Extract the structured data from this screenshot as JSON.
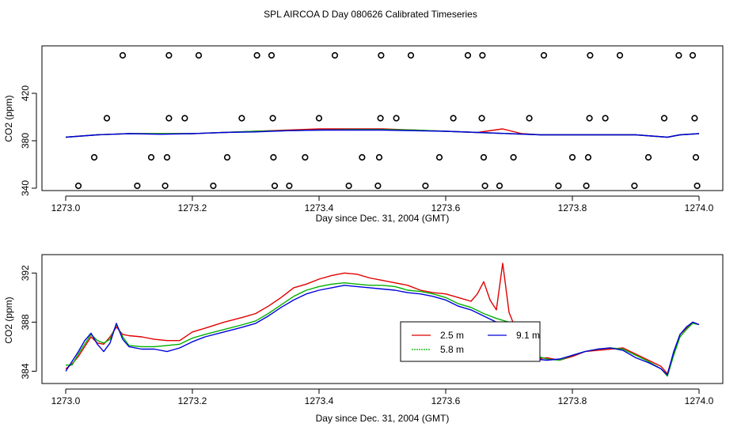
{
  "title": "SPL AIRCOA D  Day 080626  Calibrated Timeseries",
  "colors": {
    "series_2_5m": "#e00000",
    "series_5_8m": "#00b000",
    "series_9_1m": "#0000dd",
    "frame": "#000000"
  },
  "chart_data": [
    {
      "type": "line",
      "panel": "top",
      "xlabel": "Day since Dec. 31, 2004 (GMT)",
      "ylabel": "CO2 (ppm)",
      "xlim": [
        1273.0,
        1274.0
      ],
      "ylim": [
        338,
        460
      ],
      "xticks": [
        1273.0,
        1273.2,
        1273.4,
        1273.6,
        1273.8,
        1274.0
      ],
      "xtick_labels": [
        "1273.0",
        "1273.2",
        "1273.4",
        "1273.6",
        "1273.8",
        "1274.0"
      ],
      "yticks": [
        340,
        380,
        420
      ],
      "ytick_labels": [
        "340",
        "380",
        "420"
      ],
      "series": [
        {
          "name": "2.5 m",
          "color": "#e00000",
          "x": [
            1273.0,
            1273.05,
            1273.1,
            1273.15,
            1273.2,
            1273.25,
            1273.3,
            1273.35,
            1273.4,
            1273.45,
            1273.5,
            1273.55,
            1273.6,
            1273.65,
            1273.69,
            1273.72,
            1273.75,
            1273.8,
            1273.85,
            1273.9,
            1273.95,
            1273.97,
            1274.0
          ],
          "values": [
            383,
            385,
            386,
            386,
            386,
            387,
            388,
            389,
            390,
            390,
            390,
            389,
            388,
            387,
            390,
            386,
            385,
            385,
            385,
            385,
            383,
            385,
            386
          ]
        },
        {
          "name": "5.8 m",
          "color": "#00b000",
          "x": [
            1273.0,
            1273.05,
            1273.1,
            1273.15,
            1273.2,
            1273.25,
            1273.3,
            1273.35,
            1273.4,
            1273.45,
            1273.5,
            1273.55,
            1273.6,
            1273.65,
            1273.7,
            1273.75,
            1273.8,
            1273.85,
            1273.9,
            1273.95,
            1273.97,
            1274.0
          ],
          "values": [
            383,
            385,
            386,
            386,
            386,
            387,
            388,
            388.5,
            389,
            389.5,
            389.5,
            389,
            388,
            387,
            386,
            385,
            385,
            385,
            385,
            383,
            385,
            386
          ]
        },
        {
          "name": "9.1 m",
          "color": "#0000dd",
          "x": [
            1273.0,
            1273.05,
            1273.1,
            1273.15,
            1273.2,
            1273.25,
            1273.3,
            1273.35,
            1273.4,
            1273.45,
            1273.5,
            1273.55,
            1273.6,
            1273.65,
            1273.7,
            1273.75,
            1273.8,
            1273.85,
            1273.9,
            1273.95,
            1273.97,
            1274.0
          ],
          "values": [
            383,
            385,
            386,
            385.5,
            386,
            387,
            387.5,
            388.5,
            389,
            389,
            389,
            388.5,
            388,
            387,
            386,
            385,
            385,
            385,
            385,
            383,
            385,
            386
          ]
        }
      ],
      "marker_series": {
        "name": "flags",
        "marker": "open-circle",
        "points": [
          [
            1273.02,
            342
          ],
          [
            1273.045,
            366
          ],
          [
            1273.065,
            399
          ],
          [
            1273.09,
            452
          ],
          [
            1273.113,
            342
          ],
          [
            1273.135,
            366
          ],
          [
            1273.157,
            342
          ],
          [
            1273.16,
            366
          ],
          [
            1273.163,
            399
          ],
          [
            1273.163,
            452
          ],
          [
            1273.188,
            399
          ],
          [
            1273.21,
            452
          ],
          [
            1273.233,
            342
          ],
          [
            1273.255,
            366
          ],
          [
            1273.278,
            399
          ],
          [
            1273.302,
            452
          ],
          [
            1273.325,
            452
          ],
          [
            1273.327,
            399
          ],
          [
            1273.328,
            366
          ],
          [
            1273.33,
            342
          ],
          [
            1273.353,
            342
          ],
          [
            1273.378,
            366
          ],
          [
            1273.4,
            399
          ],
          [
            1273.425,
            452
          ],
          [
            1273.447,
            342
          ],
          [
            1273.468,
            366
          ],
          [
            1273.493,
            342
          ],
          [
            1273.495,
            366
          ],
          [
            1273.497,
            399
          ],
          [
            1273.498,
            452
          ],
          [
            1273.522,
            399
          ],
          [
            1273.545,
            452
          ],
          [
            1273.568,
            342
          ],
          [
            1273.59,
            366
          ],
          [
            1273.612,
            399
          ],
          [
            1273.635,
            452
          ],
          [
            1273.657,
            399
          ],
          [
            1273.658,
            452
          ],
          [
            1273.66,
            366
          ],
          [
            1273.662,
            342
          ],
          [
            1273.685,
            342
          ],
          [
            1273.707,
            366
          ],
          [
            1273.732,
            399
          ],
          [
            1273.755,
            452
          ],
          [
            1273.778,
            342
          ],
          [
            1273.8,
            366
          ],
          [
            1273.822,
            342
          ],
          [
            1273.825,
            366
          ],
          [
            1273.827,
            399
          ],
          [
            1273.828,
            452
          ],
          [
            1273.852,
            399
          ],
          [
            1273.875,
            452
          ],
          [
            1273.898,
            342
          ],
          [
            1273.92,
            366
          ],
          [
            1273.945,
            399
          ],
          [
            1273.968,
            452
          ],
          [
            1273.99,
            452
          ],
          [
            1273.993,
            399
          ],
          [
            1273.995,
            366
          ],
          [
            1273.997,
            342
          ]
        ]
      }
    },
    {
      "type": "line",
      "panel": "bottom",
      "xlabel": "Day since Dec. 31, 2004 (GMT)",
      "ylabel": "CO2 (ppm)",
      "xlim": [
        1273.0,
        1274.0
      ],
      "ylim": [
        383,
        393.5
      ],
      "xticks": [
        1273.0,
        1273.2,
        1273.4,
        1273.6,
        1273.8,
        1274.0
      ],
      "xtick_labels": [
        "1273.0",
        "1273.2",
        "1273.4",
        "1273.6",
        "1273.8",
        "1274.0"
      ],
      "yticks": [
        384,
        388,
        392
      ],
      "ytick_labels": [
        "384",
        "388",
        "392"
      ],
      "legend": {
        "placement": "bottom-center",
        "entries": [
          "2.5 m",
          "5.8 m",
          "9.1 m"
        ]
      },
      "series": [
        {
          "name": "2.5 m",
          "color": "#e00000",
          "x": [
            1273.0,
            1273.01,
            1273.02,
            1273.03,
            1273.04,
            1273.05,
            1273.06,
            1273.07,
            1273.08,
            1273.09,
            1273.1,
            1273.12,
            1273.14,
            1273.16,
            1273.18,
            1273.2,
            1273.22,
            1273.25,
            1273.28,
            1273.3,
            1273.32,
            1273.34,
            1273.36,
            1273.38,
            1273.4,
            1273.42,
            1273.44,
            1273.46,
            1273.48,
            1273.5,
            1273.52,
            1273.54,
            1273.56,
            1273.58,
            1273.6,
            1273.62,
            1273.64,
            1273.65,
            1273.66,
            1273.67,
            1273.68,
            1273.69,
            1273.7,
            1273.71,
            1273.72,
            1273.74,
            1273.76,
            1273.78,
            1273.8,
            1273.82,
            1273.84,
            1273.86,
            1273.88,
            1273.9,
            1273.92,
            1273.94,
            1273.95,
            1273.96,
            1273.97,
            1273.98,
            1273.99,
            1274.0
          ],
          "values": [
            384.2,
            384.6,
            385.2,
            386.0,
            386.8,
            386.3,
            386.2,
            386.8,
            387.6,
            387.0,
            386.9,
            386.8,
            386.6,
            386.5,
            386.5,
            387.2,
            387.5,
            388.0,
            388.4,
            388.7,
            389.3,
            390.0,
            390.8,
            391.1,
            391.5,
            391.8,
            392.0,
            391.9,
            391.6,
            391.4,
            391.2,
            391.0,
            390.6,
            390.4,
            390.3,
            390.0,
            389.7,
            390.3,
            391.3,
            389.8,
            389.0,
            392.8,
            388.8,
            387.5,
            387.8,
            385.0,
            385.1,
            384.9,
            385.2,
            385.6,
            385.7,
            385.8,
            385.9,
            385.4,
            384.9,
            384.4,
            383.8,
            385.5,
            387.0,
            387.5,
            388.0,
            387.8
          ]
        },
        {
          "name": "5.8 m",
          "color": "#00b000",
          "x": [
            1273.0,
            1273.01,
            1273.02,
            1273.03,
            1273.04,
            1273.05,
            1273.06,
            1273.07,
            1273.08,
            1273.09,
            1273.1,
            1273.12,
            1273.14,
            1273.16,
            1273.18,
            1273.2,
            1273.22,
            1273.25,
            1273.28,
            1273.3,
            1273.32,
            1273.34,
            1273.36,
            1273.38,
            1273.4,
            1273.42,
            1273.44,
            1273.46,
            1273.48,
            1273.5,
            1273.52,
            1273.54,
            1273.56,
            1273.58,
            1273.6,
            1273.62,
            1273.64,
            1273.66,
            1273.68,
            1273.7,
            1273.72,
            1273.74,
            1273.76,
            1273.78,
            1273.8,
            1273.82,
            1273.84,
            1273.86,
            1273.88,
            1273.9,
            1273.92,
            1273.94,
            1273.95,
            1273.96,
            1273.97,
            1273.98,
            1273.99,
            1274.0
          ],
          "values": [
            384.5,
            384.5,
            385.4,
            386.2,
            387.0,
            386.5,
            386.3,
            386.6,
            387.8,
            386.8,
            386.1,
            386.0,
            386.0,
            386.1,
            386.2,
            386.7,
            387.0,
            387.4,
            387.8,
            388.1,
            388.7,
            389.4,
            390.1,
            390.6,
            390.9,
            391.1,
            391.2,
            391.1,
            391.0,
            391.0,
            390.9,
            390.6,
            390.5,
            390.3,
            390.0,
            389.5,
            389.2,
            388.7,
            388.3,
            388.0,
            387.5,
            385.3,
            385.0,
            384.9,
            385.3,
            385.6,
            385.8,
            385.9,
            385.8,
            385.3,
            384.8,
            384.2,
            383.6,
            385.3,
            386.8,
            387.4,
            387.9,
            387.8
          ]
        },
        {
          "name": "9.1 m",
          "color": "#0000dd",
          "x": [
            1273.0,
            1273.01,
            1273.02,
            1273.03,
            1273.04,
            1273.05,
            1273.06,
            1273.07,
            1273.08,
            1273.09,
            1273.1,
            1273.12,
            1273.14,
            1273.16,
            1273.18,
            1273.2,
            1273.22,
            1273.25,
            1273.28,
            1273.3,
            1273.32,
            1273.34,
            1273.36,
            1273.38,
            1273.4,
            1273.42,
            1273.44,
            1273.46,
            1273.48,
            1273.5,
            1273.52,
            1273.54,
            1273.56,
            1273.58,
            1273.6,
            1273.62,
            1273.64,
            1273.66,
            1273.68,
            1273.7,
            1273.72,
            1273.74,
            1273.76,
            1273.78,
            1273.8,
            1273.82,
            1273.84,
            1273.86,
            1273.88,
            1273.9,
            1273.92,
            1273.94,
            1273.95,
            1273.96,
            1273.97,
            1273.98,
            1273.99,
            1274.0
          ],
          "values": [
            384.0,
            384.8,
            385.6,
            386.5,
            387.1,
            386.2,
            385.6,
            386.3,
            387.9,
            386.6,
            386.0,
            385.8,
            385.8,
            385.6,
            385.9,
            386.4,
            386.8,
            387.2,
            387.6,
            387.9,
            388.5,
            389.2,
            389.8,
            390.3,
            390.6,
            390.8,
            391.0,
            390.9,
            390.8,
            390.7,
            390.6,
            390.4,
            390.3,
            390.1,
            389.8,
            389.3,
            389.0,
            388.5,
            388.0,
            387.6,
            387.0,
            385.0,
            384.9,
            385.0,
            385.3,
            385.6,
            385.8,
            385.9,
            385.7,
            385.1,
            384.7,
            384.2,
            383.7,
            385.6,
            387.0,
            387.6,
            388.0,
            387.8
          ]
        }
      ]
    }
  ]
}
